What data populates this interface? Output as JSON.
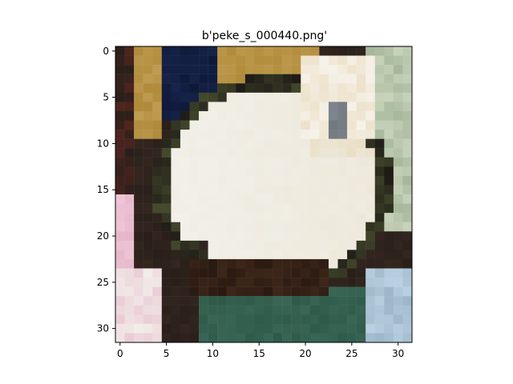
{
  "figure": {
    "title": "b'peke_s_000440.png'",
    "x_ticks": [
      "0",
      "5",
      "10",
      "15",
      "20",
      "25",
      "30"
    ],
    "y_ticks": [
      "0",
      "5",
      "10",
      "15",
      "20",
      "25",
      "30"
    ]
  },
  "image": {
    "grid_size": 32,
    "subject": "pixelated low-resolution photo of a small fluffy dog (cream/white coat) held in front of a dark background",
    "colors": {
      "dark_background": "#2a1f1a",
      "navy": "#0f1a3a",
      "gold": "#b08a3a",
      "cream_fur": "#ece6d6",
      "white_fur": "#f2f0ea",
      "dark_green": "#2f5a4a",
      "olive": "#6a7a40",
      "pink": "#e6b3c8",
      "light_blue": "#b9d1e2",
      "grey_eye": "#7f858c"
    }
  }
}
